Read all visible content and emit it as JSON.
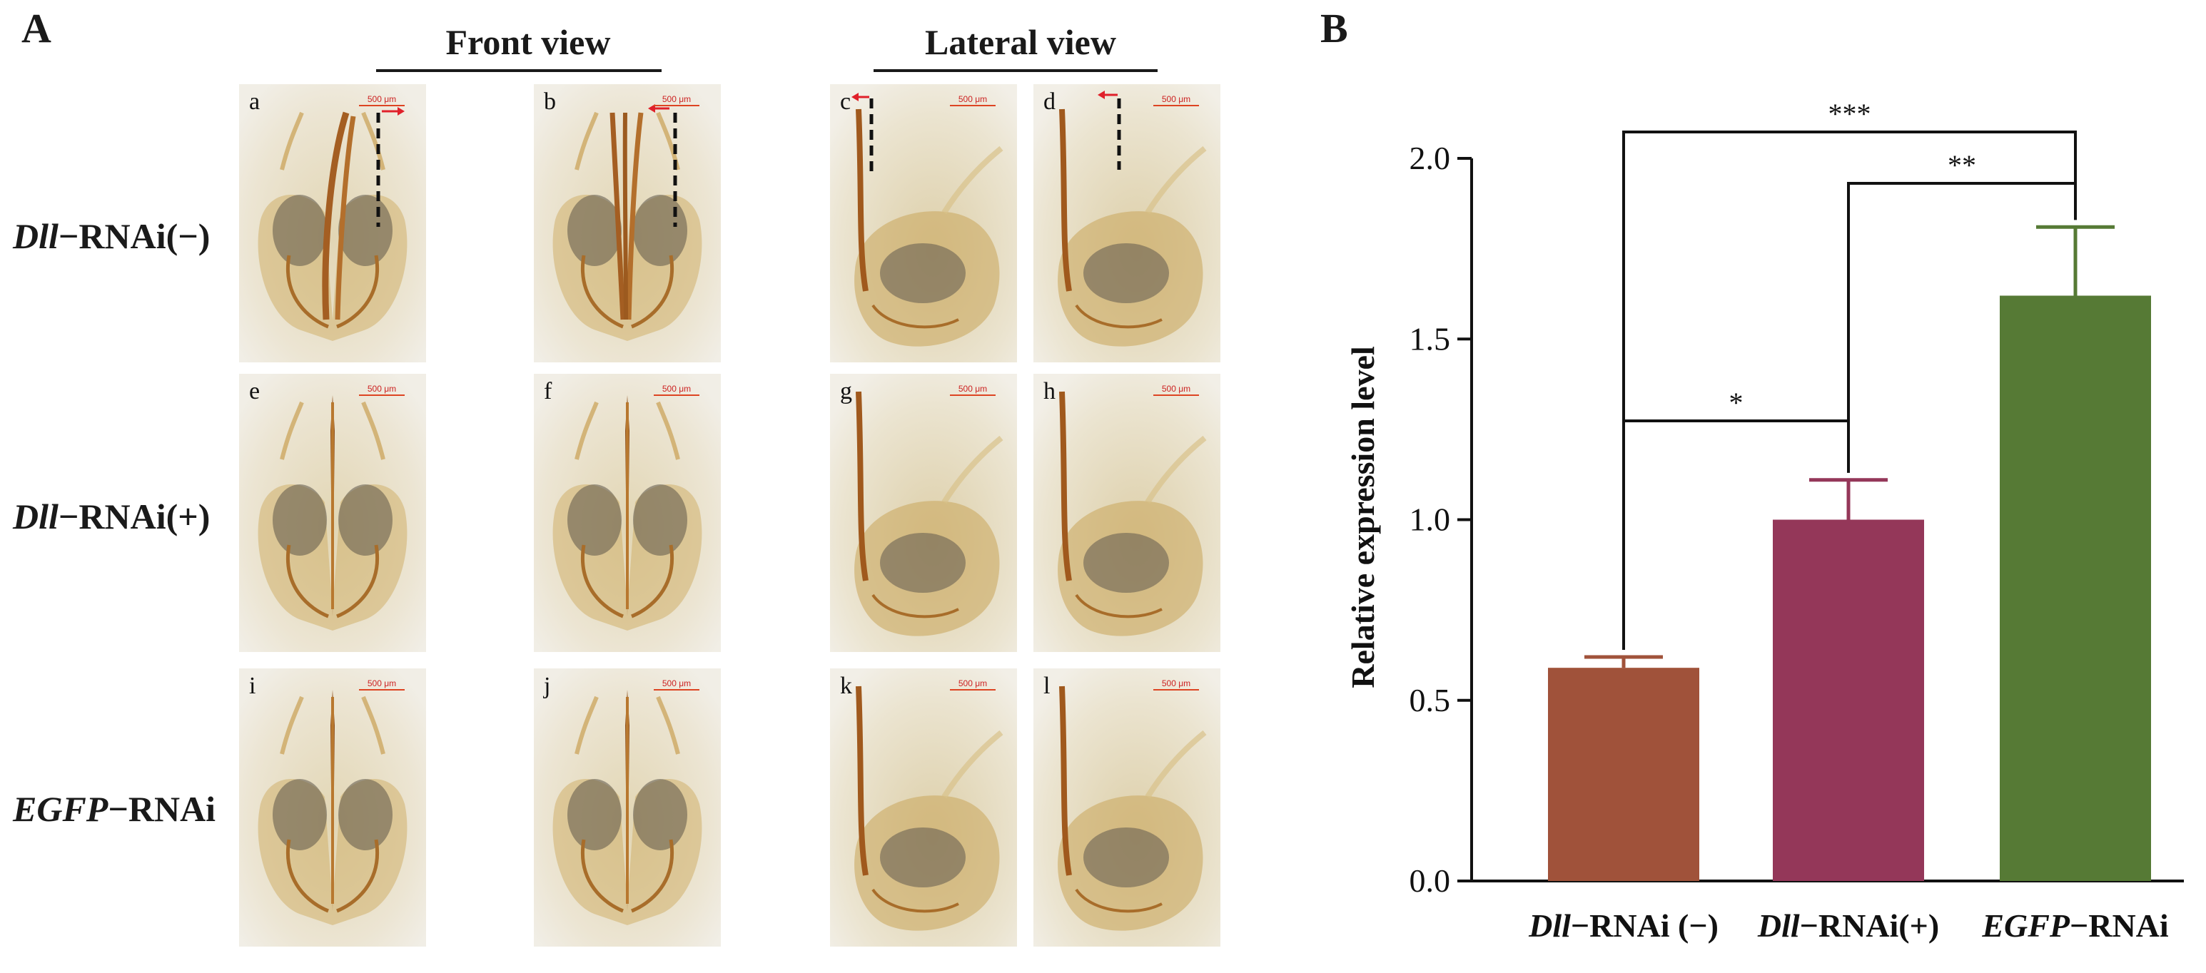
{
  "panel_a": {
    "letter": "A",
    "front_view_title": "Front view",
    "lateral_view_title": "Lateral view",
    "rows": [
      {
        "gene": "Dll",
        "suffix": "−RNAi(−)"
      },
      {
        "gene": "Dll",
        "suffix": "−RNAi(+)"
      },
      {
        "gene": "EGFP",
        "suffix": "−RNAi"
      }
    ],
    "tiles": [
      {
        "letter": "a",
        "view": "front",
        "scale": "500 μm"
      },
      {
        "letter": "b",
        "view": "front",
        "scale": "500 μm"
      },
      {
        "letter": "c",
        "view": "lateral",
        "scale": "500 μm"
      },
      {
        "letter": "d",
        "view": "lateral",
        "scale": "500 μm"
      },
      {
        "letter": "e",
        "view": "front",
        "scale": "500 μm"
      },
      {
        "letter": "f",
        "view": "front",
        "scale": "500 μm"
      },
      {
        "letter": "g",
        "view": "lateral",
        "scale": "500 μm"
      },
      {
        "letter": "h",
        "view": "lateral",
        "scale": "500 μm"
      },
      {
        "letter": "i",
        "view": "front",
        "scale": "500 μm"
      },
      {
        "letter": "j",
        "view": "front",
        "scale": "500 μm"
      },
      {
        "letter": "k",
        "view": "lateral",
        "scale": "500 μm"
      },
      {
        "letter": "l",
        "view": "lateral",
        "scale": "500 μm"
      }
    ]
  },
  "panel_b": {
    "letter": "B"
  },
  "colors": {
    "bar_dll_minus": "#a0523a",
    "bar_dll_plus": "#943759",
    "bar_egfp": "#567a35",
    "marker_arrow": "#e0202a"
  },
  "chart_data": {
    "type": "bar",
    "ylabel": "Relative expression level",
    "ylim": [
      0,
      2.0
    ],
    "yticks": [
      "0.0",
      "0.5",
      "1.0",
      "1.5",
      "2.0"
    ],
    "categories": [
      {
        "gene": "Dll",
        "suffix": "−RNAi (−)"
      },
      {
        "gene": "Dll",
        "suffix": "−RNAi(+)"
      },
      {
        "gene": "EGFP",
        "suffix": "−RNAi"
      }
    ],
    "values": [
      0.59,
      1.0,
      1.62
    ],
    "errors": [
      0.03,
      0.11,
      0.19
    ],
    "significance": [
      {
        "from": 0,
        "to": 1,
        "label": "*"
      },
      {
        "from": 1,
        "to": 2,
        "label": "**"
      },
      {
        "from": 0,
        "to": 2,
        "label": "***"
      }
    ]
  }
}
